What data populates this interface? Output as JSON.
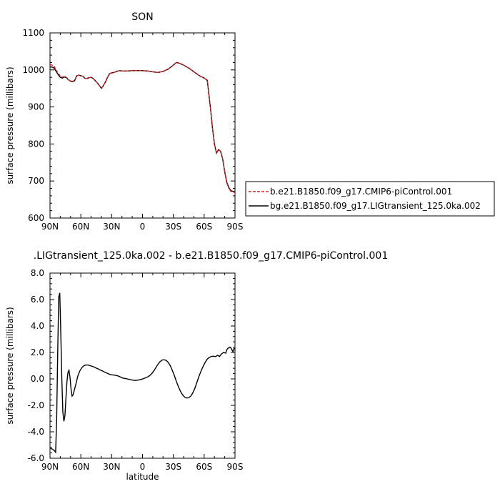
{
  "chart_data": [
    {
      "type": "line",
      "title": "SON",
      "xlabel": "",
      "ylabel": "surface pressure (millibars)",
      "xlim": [
        90,
        -90
      ],
      "ylim": [
        600,
        1100
      ],
      "x_ticks": [
        90,
        60,
        30,
        0,
        -30,
        -60,
        -90
      ],
      "x_tick_labels": [
        "90N",
        "60N",
        "30N",
        "0",
        "30S",
        "60S",
        "90S"
      ],
      "y_ticks": [
        600,
        700,
        800,
        900,
        1000,
        1100
      ],
      "y_tick_labels": [
        "600",
        "700",
        "800",
        "900",
        "1000",
        "1100"
      ],
      "legend_position": "right",
      "colors": {
        "series_1": "#cc2222",
        "series_2": "#000000"
      },
      "series": [
        {
          "name": "b.e21.B1850.f09_g17.CMIP6-piControl.001",
          "line_style": "dashed",
          "x": [
            90,
            88,
            86,
            84,
            82,
            80,
            78,
            76,
            74,
            72,
            70,
            68,
            66,
            64,
            62,
            60,
            58,
            56,
            54,
            52,
            50,
            48,
            46,
            44,
            42,
            40,
            38,
            36,
            34,
            32,
            30,
            28,
            26,
            24,
            22,
            20,
            15,
            10,
            5,
            0,
            -5,
            -10,
            -15,
            -20,
            -25,
            -30,
            -33,
            -36,
            -40,
            -45,
            -50,
            -55,
            -60,
            -63,
            -66,
            -68,
            -70,
            -72,
            -74,
            -76,
            -78,
            -80,
            -82,
            -84,
            -86,
            -88,
            -90
          ],
          "y": [
            1014,
            1013,
            1010,
            1000,
            990,
            984,
            980,
            983,
            980,
            973,
            970,
            969,
            972,
            984,
            986,
            984,
            983,
            977,
            977,
            979,
            980,
            977,
            971,
            965,
            958,
            950,
            958,
            968,
            980,
            990,
            992,
            993,
            995,
            997,
            998,
            997,
            997,
            998,
            998,
            998,
            997,
            995,
            993,
            996,
            1002,
            1013,
            1020,
            1018,
            1013,
            1005,
            995,
            985,
            978,
            972,
            900,
            845,
            800,
            775,
            785,
            780,
            760,
            725,
            695,
            680,
            672,
            670,
            669
          ]
        },
        {
          "name": "bg.e21.B1850.f09_g17.LIGtransient_125.0ka.002",
          "line_style": "solid",
          "x": [
            90,
            88,
            86,
            84,
            82,
            80,
            78,
            76,
            74,
            72,
            70,
            68,
            66,
            64,
            62,
            60,
            58,
            56,
            54,
            52,
            50,
            48,
            46,
            44,
            42,
            40,
            38,
            36,
            34,
            32,
            30,
            28,
            26,
            24,
            22,
            20,
            15,
            10,
            5,
            0,
            -5,
            -10,
            -15,
            -20,
            -25,
            -30,
            -33,
            -36,
            -40,
            -45,
            -50,
            -55,
            -60,
            -63,
            -66,
            -68,
            -70,
            -72,
            -74,
            -76,
            -78,
            -80,
            -82,
            -84,
            -86,
            -88,
            -90
          ],
          "y": [
            1008,
            1008,
            1005,
            996,
            987,
            980,
            978,
            981,
            979,
            973,
            970,
            968,
            971,
            984,
            986,
            984,
            983,
            977,
            977,
            979,
            980,
            977,
            971,
            965,
            958,
            950,
            958,
            968,
            980,
            990,
            992,
            993,
            995,
            997,
            998,
            997,
            997,
            998,
            998,
            998,
            997,
            995,
            993,
            996,
            1002,
            1013,
            1020,
            1018,
            1013,
            1005,
            995,
            985,
            978,
            972,
            900,
            845,
            800,
            775,
            785,
            780,
            760,
            725,
            697,
            682,
            674,
            672,
            671
          ]
        }
      ]
    },
    {
      "type": "line",
      "title": ".LIGtransient_125.0ka.002 - b.e21.B1850.f09_g17.CMIP6-piControl.001",
      "xlabel": "latitude",
      "ylabel": "surface pressure (millibars)",
      "xlim": [
        90,
        -90
      ],
      "ylim": [
        -6,
        8
      ],
      "x_ticks": [
        90,
        60,
        30,
        0,
        -30,
        -60,
        -90
      ],
      "x_tick_labels": [
        "90N",
        "60N",
        "30N",
        "0",
        "30S",
        "60S",
        "90S"
      ],
      "y_ticks": [
        -6,
        -4,
        -2,
        0,
        2,
        4,
        6,
        8
      ],
      "y_tick_labels": [
        "-6.0",
        "-4.0",
        "-2.0",
        "0.0",
        "2.0",
        "4.0",
        "6.0",
        "8.0"
      ],
      "colors": {
        "line": "#000000"
      },
      "series": [
        {
          "line_style": "solid",
          "x": [
            90,
            88,
            86,
            84.5,
            83.5,
            82.5,
            81.5,
            80.5,
            79.5,
            78.5,
            77.5,
            76.5,
            75.5,
            74.5,
            73.5,
            72.5,
            71.5,
            70.5,
            69.5,
            68.5,
            67.5,
            66.5,
            65.5,
            64.5,
            63,
            61,
            59,
            57,
            55,
            53,
            51,
            49,
            47,
            45,
            43,
            41,
            39,
            37,
            35,
            33,
            31,
            29,
            27,
            25,
            23,
            21,
            19,
            17,
            15,
            13,
            11,
            9,
            7,
            5,
            3,
            1,
            -1,
            -3,
            -5,
            -7,
            -9,
            -11,
            -13,
            -15,
            -17,
            -19,
            -21,
            -23,
            -25,
            -27,
            -29,
            -31,
            -33,
            -35,
            -37,
            -39,
            -41,
            -43,
            -45,
            -47,
            -49,
            -51,
            -53,
            -55,
            -57,
            -59,
            -61,
            -63,
            -65,
            -67,
            -69,
            -71,
            -73,
            -75,
            -77,
            -79,
            -81,
            -82,
            -83,
            -84,
            -85,
            -86,
            -87,
            -88,
            -89,
            -90
          ],
          "y": [
            -5.2,
            -5.3,
            -5.4,
            -5.55,
            -3.0,
            2.0,
            6.2,
            6.5,
            3.5,
            0.0,
            -2.5,
            -3.2,
            -2.8,
            -1.5,
            -0.2,
            0.5,
            0.65,
            0.1,
            -0.8,
            -1.3,
            -1.2,
            -0.9,
            -0.6,
            -0.3,
            0.2,
            0.6,
            0.85,
            1.0,
            1.05,
            1.05,
            1.0,
            0.95,
            0.9,
            0.82,
            0.75,
            0.67,
            0.6,
            0.52,
            0.45,
            0.38,
            0.32,
            0.3,
            0.28,
            0.25,
            0.2,
            0.12,
            0.06,
            0.03,
            0.0,
            -0.03,
            -0.07,
            -0.1,
            -0.12,
            -0.1,
            -0.07,
            -0.03,
            0.02,
            0.08,
            0.15,
            0.25,
            0.4,
            0.6,
            0.85,
            1.1,
            1.3,
            1.42,
            1.45,
            1.4,
            1.25,
            1.0,
            0.65,
            0.25,
            -0.2,
            -0.6,
            -0.95,
            -1.2,
            -1.38,
            -1.45,
            -1.42,
            -1.3,
            -1.05,
            -0.7,
            -0.25,
            0.2,
            0.6,
            0.95,
            1.25,
            1.5,
            1.62,
            1.7,
            1.72,
            1.68,
            1.78,
            1.7,
            1.9,
            2.0,
            1.95,
            2.2,
            2.3,
            2.35,
            2.4,
            2.35,
            2.2,
            2.05,
            2.3,
            2.25
          ]
        }
      ]
    }
  ]
}
